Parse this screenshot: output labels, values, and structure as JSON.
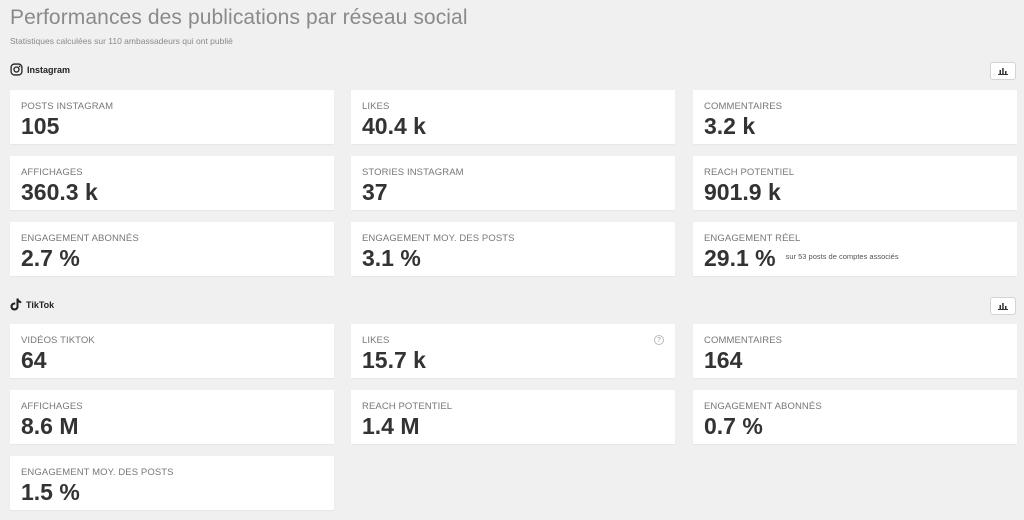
{
  "header": {
    "title": "Performances des publications par réseau social",
    "subtitle": "Statistiques calculées sur 110 ambassadeurs qui ont publié"
  },
  "instagram": {
    "name": "Instagram",
    "icon": "instagram-icon",
    "chart_button_icon": "bar-chart-icon",
    "cards": [
      {
        "label": "POSTS INSTAGRAM",
        "value": "105"
      },
      {
        "label": "LIKES",
        "value": "40.4 k"
      },
      {
        "label": "COMMENTAIRES",
        "value": "3.2 k"
      },
      {
        "label": "AFFICHAGES",
        "value": "360.3 k"
      },
      {
        "label": "STORIES INSTAGRAM",
        "value": "37"
      },
      {
        "label": "REACH POTENTIEL",
        "value": "901.9 k"
      },
      {
        "label": "ENGAGEMENT ABONNÉS",
        "value": "2.7 %"
      },
      {
        "label": "ENGAGEMENT MOY. DES POSTS",
        "value": "3.1 %"
      },
      {
        "label": "ENGAGEMENT RÉEL",
        "value": "29.1 %",
        "note": "sur 53 posts de comptes associés"
      }
    ]
  },
  "tiktok": {
    "name": "TikTok",
    "icon": "tiktok-icon",
    "chart_button_icon": "bar-chart-icon",
    "help_icon_text": "?",
    "cards": [
      {
        "label": "VIDÉOS TIKTOK",
        "value": "64"
      },
      {
        "label": "LIKES",
        "value": "15.7 k"
      },
      {
        "label": "COMMENTAIRES",
        "value": "164"
      },
      {
        "label": "AFFICHAGES",
        "value": "8.6 M"
      },
      {
        "label": "REACH POTENTIEL",
        "value": "1.4 M"
      },
      {
        "label": "ENGAGEMENT ABONNÉS",
        "value": "0.7 %"
      },
      {
        "label": "ENGAGEMENT MOY. DES POSTS",
        "value": "1.5 %"
      }
    ]
  }
}
